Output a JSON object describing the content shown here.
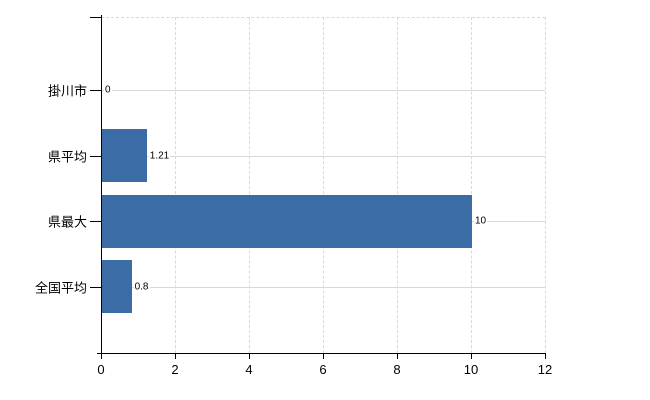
{
  "chart_data": {
    "type": "bar",
    "orientation": "horizontal",
    "title": "",
    "xlabel": "",
    "ylabel": "",
    "categories": [
      "掛川市",
      "県平均",
      "県最大",
      "全国平均"
    ],
    "values": [
      0,
      1.21,
      10,
      0.8
    ],
    "value_labels": [
      "0",
      "1.21",
      "10",
      "0.8"
    ],
    "xlim": [
      0,
      12
    ],
    "x_ticks": [
      0,
      2,
      4,
      6,
      8,
      10,
      12
    ],
    "x_tick_labels": [
      "0",
      "2",
      "4",
      "6",
      "8",
      "10",
      "12"
    ],
    "grid": true,
    "legend": false,
    "bar_color": "#3b6ca6",
    "grid_color": "#d9d9d9",
    "axis_color": "#000000",
    "text_color": "#000000",
    "background_color": "#ffffff"
  }
}
